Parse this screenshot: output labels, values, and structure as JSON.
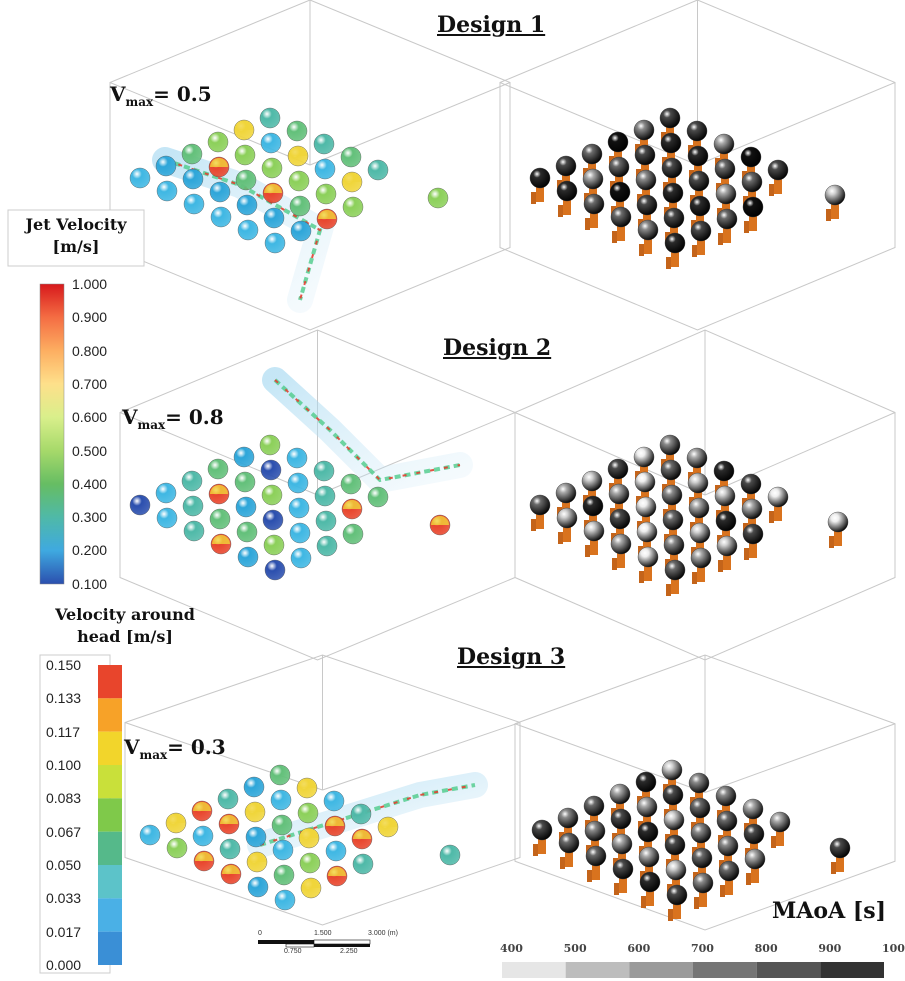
{
  "designs": [
    {
      "title": "Design 1",
      "vmax_label": "V",
      "vmax_sub": "max",
      "vmax_value": "= 0.5"
    },
    {
      "title": "Design 2",
      "vmax_label": "V",
      "vmax_sub": "max",
      "vmax_value": "= 0.8"
    },
    {
      "title": "Design 3",
      "vmax_label": "V",
      "vmax_sub": "max",
      "vmax_value": "= 0.3"
    }
  ],
  "jet_legend": {
    "title_line1": "Jet Velocity",
    "title_line2": "[m/s]",
    "ticks": [
      "1.000",
      "0.900",
      "0.800",
      "0.700",
      "0.600",
      "0.500",
      "0.400",
      "0.300",
      "0.200",
      "0.100"
    ],
    "colors": [
      "#d7191c",
      "#f46d43",
      "#fdae61",
      "#fee08b",
      "#d9ef8b",
      "#a6d96a",
      "#66bd63",
      "#4fb9a8",
      "#3fa9e0",
      "#2b4fae"
    ]
  },
  "head_legend": {
    "title_line1": "Velocity around",
    "title_line2": "head [m/s]",
    "ticks": [
      "0.150",
      "0.133",
      "0.117",
      "0.100",
      "0.083",
      "0.067",
      "0.050",
      "0.033",
      "0.017",
      "0.000"
    ],
    "colors": [
      "#e8452c",
      "#f7a228",
      "#f2d52b",
      "#c9e03a",
      "#7fc94a",
      "#55b98a",
      "#5cc3c9",
      "#4ab0e6",
      "#3a8fd6",
      "#3a4fb0"
    ]
  },
  "maoa_legend": {
    "title": "MAoA [s]",
    "ticks": [
      "400",
      "500",
      "600",
      "700",
      "800",
      "900",
      "100"
    ],
    "grays": [
      "#e6e6e6",
      "#bdbdbd",
      "#9a9a9a",
      "#757575",
      "#555555",
      "#333333",
      "#111111"
    ]
  },
  "scale_bar": {
    "top_ticks": [
      "0",
      "1.500",
      "3.000 (m)"
    ],
    "bottom_ticks": [
      "0.750",
      "2.250"
    ]
  }
}
